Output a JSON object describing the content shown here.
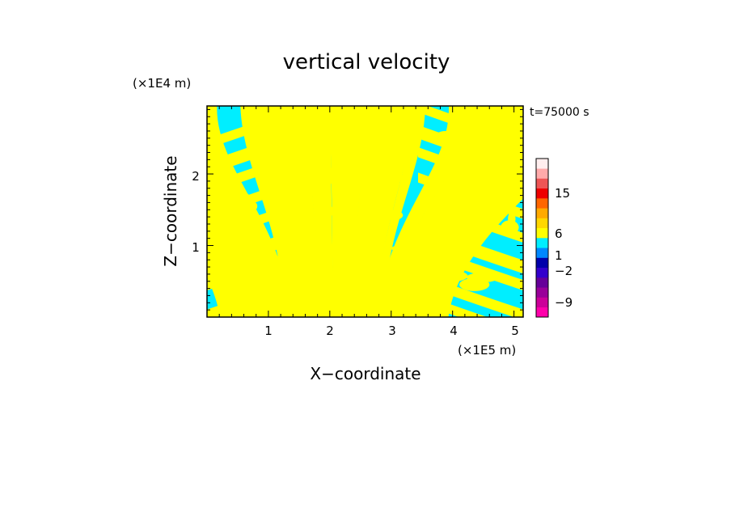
{
  "chart_data": {
    "type": "heatmap",
    "title": "vertical velocity",
    "xlabel": "X−coordinate",
    "ylabel": "Z−coordinate",
    "x_scale_label": "(×1E5 m)",
    "y_scale_label": "(×1E4 m)",
    "time_label": "t=75000 s",
    "xlim": [
      0,
      5.15
    ],
    "ylim": [
      0,
      2.95
    ],
    "x_ticks": [
      "1",
      "2",
      "3",
      "4",
      "5"
    ],
    "y_ticks": [
      "1",
      "2"
    ],
    "field_colors": {
      "positive": "#ffff00",
      "negative": "#00eeff"
    },
    "colorbar": {
      "levels": [
        {
          "color": "#ff00aa",
          "value": null
        },
        {
          "color": "#cc0099",
          "value": null
        },
        {
          "color": "#990099",
          "value": null
        },
        {
          "color": "#660099",
          "value": null
        },
        {
          "color": "#3300cc",
          "value": null
        },
        {
          "color": "#0000aa",
          "value": null
        },
        {
          "color": "#0088ff",
          "value": null
        },
        {
          "color": "#00eeff",
          "value": null
        },
        {
          "color": "#ffff00",
          "value": null
        },
        {
          "color": "#ffd700",
          "value": null
        },
        {
          "color": "#ffaa00",
          "value": null
        },
        {
          "color": "#ff6600",
          "value": null
        },
        {
          "color": "#ee0000",
          "value": null
        },
        {
          "color": "#ee5555",
          "value": null
        },
        {
          "color": "#ffaaaa",
          "value": null
        },
        {
          "color": "#ffeeee",
          "value": null
        }
      ],
      "tick_labels": [
        "15",
        "6",
        "1",
        "−2",
        "−9"
      ]
    }
  }
}
